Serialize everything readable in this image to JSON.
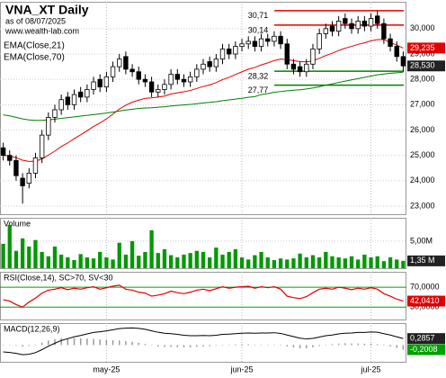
{
  "chart_data": [
    {
      "type": "candlestick",
      "title": "VNA_XT Daily",
      "subtitle": "as of 08/07/2025",
      "source": "www.wealth-lab.com",
      "categories": [
        null,
        null,
        null,
        null,
        null,
        null,
        null,
        null,
        null,
        null,
        null,
        null,
        null,
        null,
        null,
        null,
        "may-25",
        null,
        null,
        null,
        null,
        null,
        null,
        null,
        null,
        null,
        null,
        null,
        null,
        null,
        null,
        null,
        null,
        null,
        null,
        null,
        null,
        "jun-25",
        null,
        null,
        null,
        null,
        null,
        null,
        null,
        null,
        null,
        null,
        null,
        null,
        null,
        null,
        null,
        null,
        null,
        null,
        null,
        "jul-25",
        null,
        null,
        null,
        null,
        null
      ],
      "open": [
        25300,
        25000,
        24800,
        24100,
        23900,
        24300,
        24900,
        25800,
        26500,
        26800,
        27300,
        27000,
        27500,
        27300,
        27600,
        28000,
        27700,
        28100,
        28500,
        28900,
        28400,
        28300,
        28000,
        27900,
        27500,
        27600,
        27800,
        28200,
        28000,
        27900,
        28100,
        28400,
        28700,
        28500,
        28800,
        29200,
        29000,
        29300,
        29400,
        29500,
        29300,
        29600,
        29500,
        29700,
        29400,
        28600,
        28500,
        28300,
        28600,
        29200,
        29800,
        30100,
        29900,
        30400,
        30200,
        30000,
        30300,
        30100,
        30500,
        30200,
        29600,
        29300,
        28900
      ],
      "high": [
        25500,
        25200,
        25000,
        24300,
        24500,
        25100,
        26000,
        26700,
        27000,
        27400,
        27500,
        27600,
        27700,
        27800,
        28100,
        28200,
        28300,
        28700,
        29000,
        29100,
        28600,
        28500,
        28200,
        28100,
        27800,
        28000,
        28400,
        28400,
        28200,
        28300,
        28600,
        28800,
        28900,
        29000,
        29400,
        29400,
        29500,
        29600,
        29700,
        29700,
        29800,
        29800,
        29900,
        29900,
        29600,
        28800,
        28700,
        28800,
        29400,
        30000,
        30200,
        30300,
        30500,
        30600,
        30400,
        30500,
        30500,
        30600,
        30710,
        30400,
        29800,
        29500,
        29100
      ],
      "low": [
        24800,
        24600,
        24000,
        23100,
        23700,
        24100,
        24700,
        25600,
        26300,
        26600,
        26800,
        26800,
        27100,
        27100,
        27400,
        27500,
        27500,
        27900,
        28300,
        28200,
        28100,
        27800,
        27700,
        27300,
        27300,
        27400,
        27600,
        27800,
        27700,
        27700,
        27900,
        28200,
        28300,
        28300,
        28600,
        28800,
        28800,
        29100,
        29200,
        29100,
        29100,
        29300,
        29300,
        29200,
        28400,
        28200,
        28100,
        28100,
        28400,
        29000,
        29600,
        29700,
        29700,
        30000,
        29800,
        29800,
        29900,
        29900,
        30000,
        29400,
        29100,
        28700,
        28300
      ],
      "close": [
        25000,
        24800,
        24200,
        23800,
        24300,
        24900,
        25800,
        26500,
        26800,
        27200,
        27000,
        27400,
        27300,
        27600,
        27900,
        27700,
        28100,
        28500,
        28800,
        28400,
        28300,
        28000,
        27900,
        27500,
        27600,
        27800,
        28200,
        28000,
        27900,
        28100,
        28400,
        28600,
        28500,
        28800,
        29200,
        29000,
        29300,
        29400,
        29500,
        29300,
        29600,
        29500,
        29700,
        29400,
        28600,
        28400,
        28300,
        28600,
        29200,
        29800,
        30000,
        29900,
        30300,
        30200,
        30000,
        30300,
        30100,
        30400,
        30200,
        29600,
        29300,
        28900,
        28530
      ],
      "up_color": "#ffffff",
      "down_color": "#000000",
      "series": [
        {
          "name": "EMA(Close,21)",
          "color": "#e00000",
          "values": [
            25000,
            24980,
            24910,
            24810,
            24760,
            24770,
            24860,
            25010,
            25170,
            25350,
            25490,
            25660,
            25810,
            25970,
            26140,
            26280,
            26440,
            26630,
            26830,
            26980,
            27100,
            27180,
            27250,
            27270,
            27300,
            27340,
            27420,
            27470,
            27510,
            27560,
            27640,
            27720,
            27780,
            27870,
            27990,
            28080,
            28190,
            28300,
            28400,
            28470,
            28570,
            28650,
            28740,
            28800,
            28780,
            28740,
            28700,
            28690,
            28730,
            28830,
            28940,
            29030,
            29140,
            29230,
            29300,
            29380,
            29440,
            29520,
            29570,
            29570,
            29450,
            29350,
            29235
          ]
        },
        {
          "name": "EMA(Close,70)",
          "color": "#008000",
          "values": [
            26600,
            26560,
            26500,
            26440,
            26400,
            26380,
            26380,
            26400,
            26430,
            26460,
            26490,
            26520,
            26550,
            26580,
            26610,
            26640,
            26670,
            26710,
            26750,
            26790,
            26820,
            26850,
            26870,
            26880,
            26900,
            26920,
            26950,
            26970,
            26990,
            27010,
            27040,
            27070,
            27090,
            27120,
            27160,
            27190,
            27220,
            27250,
            27290,
            27320,
            27400,
            27440,
            27490,
            27520,
            27550,
            27570,
            27590,
            27620,
            27660,
            27710,
            27770,
            27820,
            27880,
            27930,
            27980,
            28030,
            28080,
            28130,
            28180,
            28210,
            28240,
            28260,
            28280
          ]
        }
      ],
      "levels": [
        {
          "value": 30710,
          "label": "30,71",
          "color": "#e00000"
        },
        {
          "value": 30140,
          "label": "30,14",
          "color": "#e00000"
        },
        {
          "value": 28320,
          "label": "28,32",
          "color": "#008000"
        },
        {
          "value": 27770,
          "label": "27,77",
          "color": "#008000"
        }
      ],
      "markers": [
        {
          "value": 29235,
          "label": "29,235",
          "color": "#e00000"
        },
        {
          "value": 28530,
          "label": "28,530",
          "color": "#222222"
        }
      ],
      "ylim": [
        22680,
        31060
      ],
      "yticks": [
        {
          "value": 23000,
          "label": "23,000"
        },
        {
          "value": 24000,
          "label": "24,000"
        },
        {
          "value": 25000,
          "label": "25,000"
        },
        {
          "value": 26000,
          "label": "26,000"
        },
        {
          "value": 27000,
          "label": "27,000"
        },
        {
          "value": 28000,
          "label": "28,000"
        },
        {
          "value": 29000,
          "label": "29,000"
        },
        {
          "value": 30000,
          "label": "30,000"
        }
      ],
      "grid": true
    },
    {
      "type": "bar",
      "title": "Volume",
      "color": "#009900",
      "values": [
        4500000,
        8000000,
        3200000,
        5500000,
        4000000,
        5200000,
        3000000,
        2200000,
        4000000,
        2500000,
        2000000,
        1500000,
        2600000,
        2000000,
        1800000,
        3000000,
        2000000,
        1600000,
        4700000,
        2500000,
        5000000,
        2300000,
        3000000,
        7000000,
        2800000,
        3500000,
        2400000,
        2000000,
        2500000,
        2800000,
        3200000,
        3000000,
        2000000,
        3800000,
        2500000,
        3000000,
        3500000,
        2000000,
        1600000,
        2400000,
        3000000,
        2000000,
        1500000,
        1800000,
        1600000,
        1800000,
        2700000,
        2000000,
        2400000,
        2000000,
        3000000,
        2200000,
        2000000,
        1800000,
        2200000,
        1600000,
        2500000,
        2000000,
        2200000,
        1300000,
        2000000,
        1600000,
        1350000
      ],
      "markers": [
        {
          "value": 1350000,
          "label": "1,35 M",
          "color": "#222222"
        }
      ],
      "ylim": [
        0,
        9300000
      ],
      "yticks": [
        {
          "value": 5000000,
          "label": "5,00M"
        }
      ],
      "grid": true
    },
    {
      "type": "line",
      "title": "RSI(Close,14), SC>70, SV<30",
      "color": "#e00000",
      "values": [
        45,
        42,
        35,
        30,
        40,
        48,
        58,
        64,
        66,
        69,
        65,
        68,
        66,
        69,
        71,
        66,
        69,
        72,
        74,
        66,
        64,
        60,
        58,
        52,
        54,
        57,
        62,
        59,
        57,
        60,
        64,
        66,
        63,
        67,
        71,
        68,
        70,
        71,
        72,
        68,
        71,
        69,
        71,
        66,
        52,
        49,
        47,
        51,
        59,
        66,
        68,
        66,
        70,
        68,
        65,
        68,
        66,
        69,
        66,
        57,
        52,
        46,
        42.041
      ],
      "markers": [
        {
          "value": 42.041,
          "label": "42,0410",
          "color": "#e00000"
        }
      ],
      "ylim": [
        5,
        101
      ],
      "yticks": [
        {
          "value": 70,
          "label": "70,0000"
        },
        {
          "value": 30,
          "label": "30,0000"
        }
      ],
      "grid": true,
      "grid_color": "#00a000"
    },
    {
      "type": "macd",
      "title": "MACD(12,26,9)",
      "color": "#000000",
      "histogram_color": "#999999",
      "values": [
        -0.3,
        -0.32,
        -0.36,
        -0.42,
        -0.4,
        -0.33,
        -0.2,
        -0.05,
        0.08,
        0.2,
        0.28,
        0.36,
        0.42,
        0.49,
        0.55,
        0.58,
        0.62,
        0.67,
        0.72,
        0.74,
        0.75,
        0.73,
        0.69,
        0.62,
        0.56,
        0.52,
        0.5,
        0.47,
        0.43,
        0.41,
        0.41,
        0.42,
        0.41,
        0.43,
        0.47,
        0.48,
        0.5,
        0.52,
        0.53,
        0.52,
        0.53,
        0.53,
        0.54,
        0.51,
        0.44,
        0.37,
        0.3,
        0.27,
        0.29,
        0.35,
        0.41,
        0.44,
        0.49,
        0.52,
        0.53,
        0.55,
        0.55,
        0.57,
        0.56,
        0.5,
        0.44,
        0.36,
        0.2857
      ],
      "histogram": [
        0.02,
        0.0,
        -0.03,
        -0.07,
        -0.04,
        0.02,
        0.11,
        0.2,
        0.26,
        0.3,
        0.3,
        0.3,
        0.29,
        0.28,
        0.27,
        0.24,
        0.22,
        0.21,
        0.2,
        0.17,
        0.14,
        0.1,
        0.05,
        -0.02,
        -0.06,
        -0.08,
        -0.08,
        -0.09,
        -0.1,
        -0.1,
        -0.08,
        -0.06,
        -0.05,
        -0.02,
        0.01,
        0.02,
        0.03,
        0.04,
        0.04,
        0.02,
        0.02,
        0.02,
        0.02,
        -0.01,
        -0.06,
        -0.1,
        -0.14,
        -0.14,
        -0.1,
        -0.04,
        0.01,
        0.04,
        0.07,
        0.08,
        0.07,
        0.07,
        0.06,
        0.06,
        0.04,
        -0.02,
        -0.06,
        -0.12,
        -0.2008
      ],
      "markers": [
        {
          "value": 0.2857,
          "label": "0,2857",
          "color": "#222222"
        },
        {
          "value": -0.2008,
          "label": "-0,2008",
          "color": "#00a000"
        }
      ],
      "ylim": [
        -0.73,
        0.96
      ]
    }
  ]
}
